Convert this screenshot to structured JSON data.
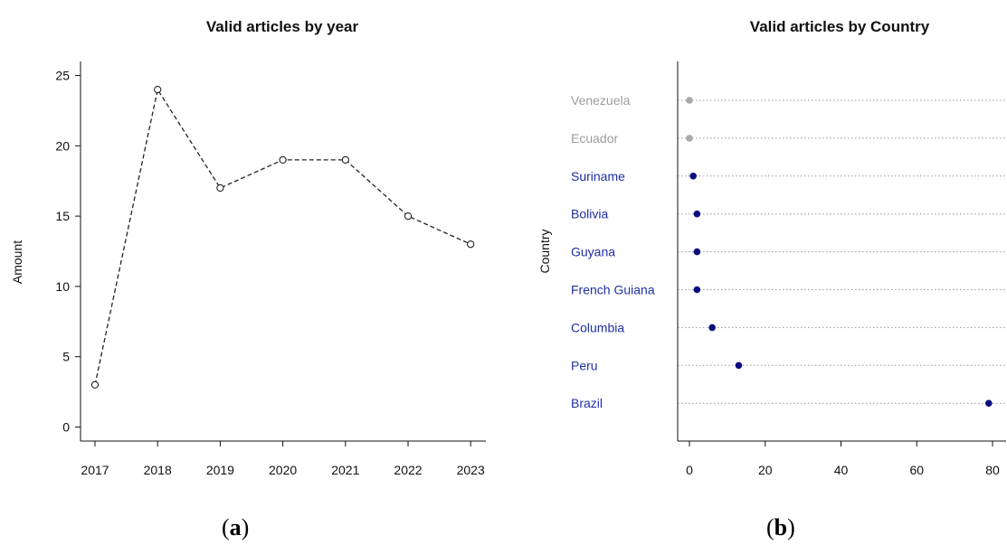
{
  "chart_data": [
    {
      "type": "line",
      "title": "Valid articles by year",
      "xlabel": "",
      "ylabel": "Amount",
      "x": [
        "2017",
        "2018",
        "2019",
        "2020",
        "2021",
        "2022",
        "2023"
      ],
      "values": [
        3,
        24,
        17,
        19,
        19,
        15,
        13
      ],
      "yticks": [
        0,
        5,
        10,
        15,
        20,
        25
      ],
      "ylim": [
        -1,
        26
      ],
      "line_style": "dashed",
      "marker": "open-circle",
      "grid": false,
      "panel_label": "a"
    },
    {
      "type": "scatter",
      "title": "Valid articles by Country",
      "xlabel": "",
      "ylabel": "Country",
      "categories": [
        "Venezuela",
        "Ecuador",
        "Suriname",
        "Bolivia",
        "Guyana",
        "French Guiana",
        "Columbia",
        "Peru",
        "Brazil"
      ],
      "values": [
        0,
        0,
        1,
        2,
        2,
        2,
        6,
        13,
        79
      ],
      "xticks": [
        0,
        20,
        40,
        60,
        80
      ],
      "xlim": [
        -3,
        80
      ],
      "grid": "horizontal-dotted",
      "colors": {
        "nonzero": "#0c0c80",
        "zero": "#a9a9a9",
        "label_nonzero": "#1f2fa6",
        "label_zero": "#9d9d9d"
      },
      "panel_label": "b"
    }
  ]
}
